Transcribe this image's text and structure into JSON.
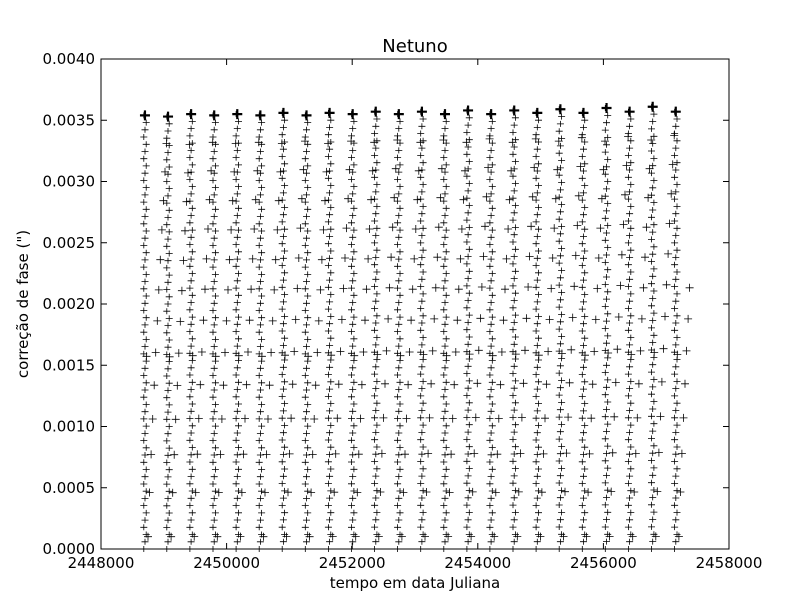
{
  "chart_data": {
    "type": "scatter",
    "title": "Netuno",
    "xlabel": "tempo em data Juliana",
    "ylabel": "correção de fase (\")",
    "xlim": [
      2448000,
      2458000
    ],
    "ylim": [
      0,
      0.004
    ],
    "x_ticks": [
      "2448000",
      "2450000",
      "2452000",
      "2454000",
      "2456000",
      "2458000"
    ],
    "y_ticks": [
      "0.0000",
      "0.0005",
      "0.0010",
      "0.0015",
      "0.0020",
      "0.0025",
      "0.0030",
      "0.0035",
      "0.0040"
    ],
    "grid": false,
    "legend": "none",
    "marker": "+",
    "series": [
      {
        "x_start": 2448700,
        "x_end": 2457380,
        "period_days": 367.5,
        "y_min": 0.0,
        "y_max_values": [
          0.00354,
          0.00353,
          0.00355,
          0.00354,
          0.00355,
          0.00354,
          0.00356,
          0.00354,
          0.00356,
          0.00355,
          0.00357,
          0.00355,
          0.00357,
          0.00355,
          0.00358,
          0.00355,
          0.00358,
          0.00356,
          0.00359,
          0.00356,
          0.0036,
          0.00357,
          0.00361,
          0.00357,
          0.00361,
          0.00358,
          0.00362,
          0.00358,
          0.00363,
          0.00359,
          0.00364,
          0.00359,
          0.00365,
          0.0036,
          0.00365,
          0.0036,
          0.00366,
          0.00361,
          0.00366,
          0.00362,
          0.00367,
          0.00363,
          0.00367,
          0.00363,
          0.00366,
          0.00364,
          0.00366,
          0.00365,
          0.00365
        ]
      }
    ]
  },
  "colors": {
    "marker": "#000000",
    "axes": "#000000",
    "background": "#ffffff"
  }
}
